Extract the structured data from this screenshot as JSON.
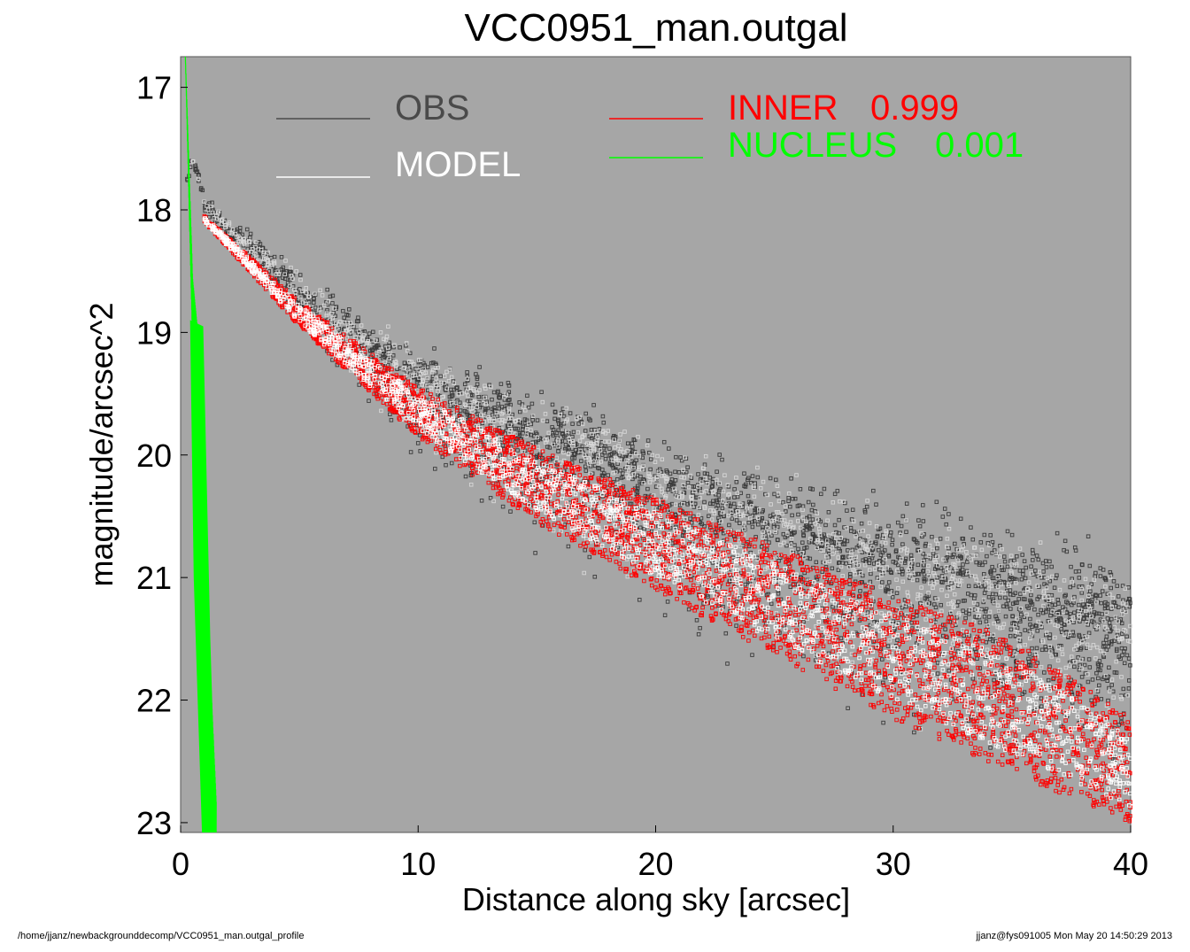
{
  "chart_data": {
    "type": "scatter",
    "title": "VCC0951_man.outgal",
    "xlabel": "Distance along sky [arcsec]",
    "ylabel": "magnitude/arcsec^2",
    "xlim": [
      0,
      40
    ],
    "ylim": [
      23.08,
      16.75
    ],
    "y_inverted": true,
    "x_ticks": [
      0,
      10,
      20,
      30,
      40
    ],
    "y_ticks": [
      17,
      18,
      19,
      20,
      21,
      22,
      23
    ],
    "background_color": "#a6a6a6",
    "grid": false,
    "legend": {
      "left": [
        {
          "name": "OBS",
          "color": "#4a4a4a"
        },
        {
          "name": "MODEL",
          "color": "#ffffff"
        }
      ],
      "right": [
        {
          "name": "INNER",
          "value": "0.999",
          "color": "#ff0000"
        },
        {
          "name": "NUCLEUS",
          "value": "0.001",
          "color": "#00ff00"
        }
      ]
    },
    "series": [
      {
        "name": "OBS",
        "style": "open-square-markers",
        "color": "#3a3a3a",
        "x": [
          0.3,
          0.5,
          0.7,
          1,
          1.5,
          2,
          3,
          4,
          5,
          6,
          8,
          10,
          12,
          14,
          16,
          18,
          20,
          22,
          25,
          28,
          30,
          32,
          35,
          38,
          40
        ],
        "y_center": [
          17.75,
          17.6,
          17.7,
          17.95,
          18.05,
          18.15,
          18.3,
          18.5,
          18.7,
          18.85,
          19.15,
          19.4,
          19.6,
          19.8,
          19.95,
          20.1,
          20.3,
          20.45,
          20.65,
          20.85,
          20.95,
          21.05,
          21.25,
          21.4,
          21.5
        ],
        "scatter_halfwidth_upper": [
          0.05,
          0.05,
          0.05,
          0.1,
          0.12,
          0.15,
          0.2,
          0.25,
          0.3,
          0.35,
          0.4,
          0.45,
          0.5,
          0.55,
          0.6,
          0.65,
          0.7,
          0.75,
          0.8,
          0.85,
          0.9,
          0.95,
          1.0,
          1.05,
          1.1
        ],
        "scatter_halfwidth_lower": [
          0.05,
          0.05,
          0.05,
          0.1,
          0.12,
          0.15,
          0.2,
          0.3,
          0.4,
          0.5,
          0.7,
          0.9,
          1.0,
          1.1,
          1.2,
          1.3,
          1.4,
          1.5,
          1.55,
          1.6,
          1.6,
          1.6,
          1.6,
          1.6,
          1.6
        ]
      },
      {
        "name": "MODEL",
        "style": "open-square-markers",
        "color": "#ffffff",
        "x": [
          1,
          5,
          10,
          15,
          20,
          25,
          30,
          35,
          40
        ],
        "y_upper": [
          18.05,
          18.75,
          19.45,
          19.95,
          20.35,
          20.75,
          21.15,
          21.5,
          22.15
        ],
        "y_lower": [
          18.1,
          18.95,
          19.85,
          20.55,
          21.1,
          21.65,
          22.15,
          22.6,
          23.0
        ]
      },
      {
        "name": "INNER",
        "style": "open-square-markers",
        "color": "#ff0000",
        "x": [
          1,
          5,
          10,
          15,
          20,
          25,
          30,
          35,
          40
        ],
        "y_upper": [
          18.05,
          18.75,
          19.45,
          19.95,
          20.35,
          20.75,
          21.15,
          21.5,
          22.15
        ],
        "y_lower": [
          18.1,
          18.95,
          19.85,
          20.55,
          21.1,
          21.65,
          22.15,
          22.6,
          23.0
        ]
      },
      {
        "name": "NUCLEUS",
        "style": "line",
        "color": "#00ff00",
        "x": [
          0.2,
          0.5,
          0.8,
          1.0,
          1.2,
          1.5
        ],
        "y": [
          16.75,
          18.8,
          19.4,
          20.5,
          21.8,
          23.08
        ]
      }
    ]
  },
  "footer": {
    "left": "/home/jjanz/newbackgrounddecomp/VCC0951_man.outgal_profile",
    "right": "jjanz@fys091005  Mon May 20 14:50:29 2013"
  }
}
